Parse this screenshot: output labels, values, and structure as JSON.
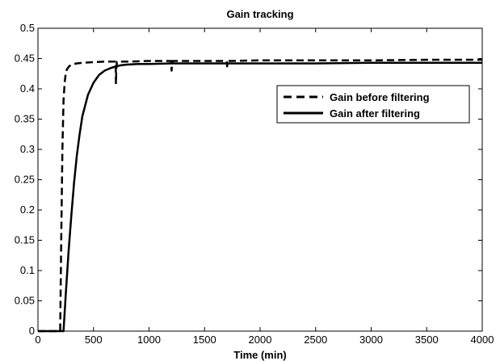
{
  "chart_data": {
    "type": "line",
    "title": "Gain tracking",
    "xlabel": "Time (min)",
    "ylabel": "",
    "xlim": [
      0,
      4000
    ],
    "ylim": [
      0,
      0.5
    ],
    "xticks": [
      0,
      500,
      1000,
      1500,
      2000,
      2500,
      3000,
      3500,
      4000
    ],
    "yticks": [
      0,
      0.05,
      0.1,
      0.15,
      0.2,
      0.25,
      0.3,
      0.35,
      0.4,
      0.45,
      0.5
    ],
    "ytick_labels": [
      "0",
      "0.05",
      "0.1",
      "0.15",
      "0.2",
      "0.25",
      "0.3",
      "0.35",
      "0.4",
      "0.45",
      "0.5"
    ],
    "grid": false,
    "legend_position": "top-right",
    "series": [
      {
        "name": "Gain before filtering",
        "style": "dashed",
        "x": [
          0,
          200,
          210,
          220,
          230,
          240,
          250,
          260,
          280,
          300,
          350,
          400,
          500,
          600,
          700,
          702,
          705,
          710,
          800,
          1000,
          1200,
          1203,
          1210,
          1500,
          1700,
          1703,
          1710,
          2000,
          2500,
          3000,
          3500,
          4000
        ],
        "y": [
          0,
          0,
          0.16,
          0.3,
          0.38,
          0.41,
          0.425,
          0.432,
          0.437,
          0.44,
          0.442,
          0.443,
          0.444,
          0.445,
          0.445,
          0.408,
          0.43,
          0.445,
          0.445,
          0.446,
          0.446,
          0.43,
          0.446,
          0.446,
          0.446,
          0.437,
          0.446,
          0.447,
          0.447,
          0.447,
          0.448,
          0.448
        ]
      },
      {
        "name": "Gain after filtering",
        "style": "solid",
        "x": [
          0,
          230,
          250,
          275,
          300,
          325,
          350,
          375,
          400,
          450,
          500,
          550,
          600,
          650,
          700,
          750,
          800,
          900,
          1000,
          1200,
          1500,
          2000,
          2500,
          3000,
          3500,
          4000
        ],
        "y": [
          0,
          0,
          0.06,
          0.13,
          0.19,
          0.245,
          0.29,
          0.325,
          0.355,
          0.39,
          0.41,
          0.423,
          0.43,
          0.434,
          0.437,
          0.439,
          0.44,
          0.441,
          0.441,
          0.442,
          0.442,
          0.442,
          0.442,
          0.443,
          0.443,
          0.443
        ]
      }
    ]
  }
}
